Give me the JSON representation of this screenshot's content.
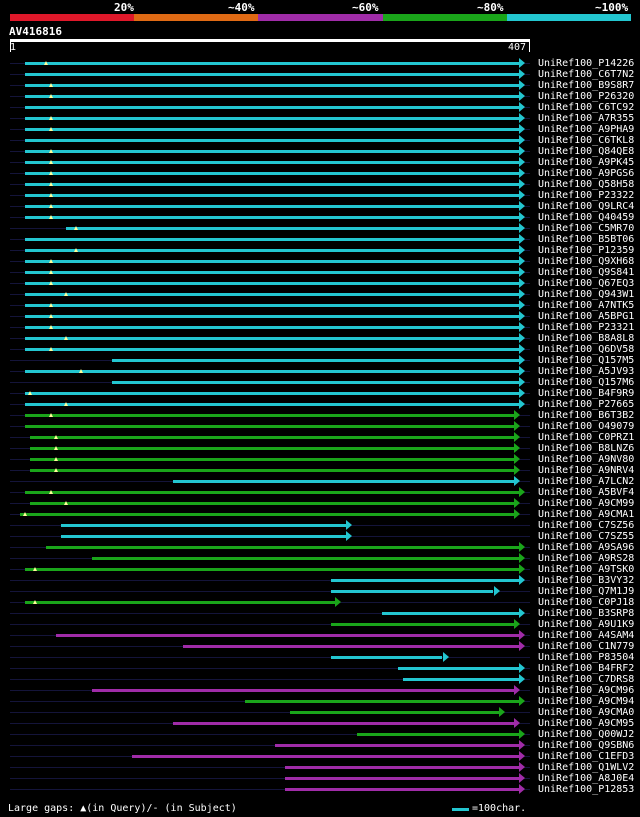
{
  "legend": {
    "labels": [
      "20%",
      "~40%",
      "~60%",
      "~80%",
      "~100%"
    ],
    "colors": [
      "#e0182a",
      "#e06a14",
      "#a02ca8",
      "#1aa51a",
      "#23c6d0"
    ]
  },
  "query": {
    "name": "AV416816",
    "start": "1",
    "end": "407"
  },
  "footer": {
    "gaps_text": "Large gaps: ▲(in Query)/- (in Subject)",
    "scale_text": "=100char."
  },
  "hits": [
    {
      "name": "UniRef100_P14226",
      "color": "cyan",
      "start": 0.02,
      "end": 1.0,
      "marker": 0.06
    },
    {
      "name": "UniRef100_C6T7N2",
      "color": "cyan",
      "start": 0.02,
      "end": 1.0,
      "marker": null
    },
    {
      "name": "UniRef100_B9S8R7",
      "color": "cyan",
      "start": 0.02,
      "end": 1.0,
      "marker": 0.07
    },
    {
      "name": "UniRef100_P26320",
      "color": "cyan",
      "start": 0.02,
      "end": 1.0,
      "marker": 0.07
    },
    {
      "name": "UniRef100_C6TC92",
      "color": "cyan",
      "start": 0.02,
      "end": 1.0,
      "marker": null
    },
    {
      "name": "UniRef100_A7R355",
      "color": "cyan",
      "start": 0.02,
      "end": 1.0,
      "marker": 0.07
    },
    {
      "name": "UniRef100_A9PHA9",
      "color": "cyan",
      "start": 0.02,
      "end": 1.0,
      "marker": 0.07
    },
    {
      "name": "UniRef100_C6TKL8",
      "color": "cyan",
      "start": 0.02,
      "end": 1.0,
      "marker": null
    },
    {
      "name": "UniRef100_Q84QE8",
      "color": "cyan",
      "start": 0.02,
      "end": 1.0,
      "marker": 0.07
    },
    {
      "name": "UniRef100_A9PK45",
      "color": "cyan",
      "start": 0.02,
      "end": 1.0,
      "marker": 0.07
    },
    {
      "name": "UniRef100_A9PGS6",
      "color": "cyan",
      "start": 0.02,
      "end": 1.0,
      "marker": 0.07
    },
    {
      "name": "UniRef100_Q58H58",
      "color": "cyan",
      "start": 0.02,
      "end": 1.0,
      "marker": 0.07
    },
    {
      "name": "UniRef100_P23322",
      "color": "cyan",
      "start": 0.02,
      "end": 1.0,
      "marker": 0.07
    },
    {
      "name": "UniRef100_Q9LRC4",
      "color": "cyan",
      "start": 0.02,
      "end": 1.0,
      "marker": 0.07
    },
    {
      "name": "UniRef100_Q40459",
      "color": "cyan",
      "start": 0.02,
      "end": 1.0,
      "marker": 0.07
    },
    {
      "name": "UniRef100_C5MR70",
      "color": "cyan",
      "start": 0.1,
      "end": 1.0,
      "marker": 0.12
    },
    {
      "name": "UniRef100_B5BT06",
      "color": "cyan",
      "start": 0.02,
      "end": 1.0,
      "marker": null
    },
    {
      "name": "UniRef100_P12359",
      "color": "cyan",
      "start": 0.02,
      "end": 1.0,
      "marker": 0.12
    },
    {
      "name": "UniRef100_Q9XH68",
      "color": "cyan",
      "start": 0.02,
      "end": 1.0,
      "marker": 0.07
    },
    {
      "name": "UniRef100_Q9S841",
      "color": "cyan",
      "start": 0.02,
      "end": 1.0,
      "marker": 0.07
    },
    {
      "name": "UniRef100_Q67EQ3",
      "color": "cyan",
      "start": 0.02,
      "end": 1.0,
      "marker": 0.07
    },
    {
      "name": "UniRef100_Q943W1",
      "color": "cyan",
      "start": 0.02,
      "end": 1.0,
      "marker": 0.1
    },
    {
      "name": "UniRef100_A7NTK5",
      "color": "cyan",
      "start": 0.02,
      "end": 1.0,
      "marker": 0.07
    },
    {
      "name": "UniRef100_A5BPG1",
      "color": "cyan",
      "start": 0.02,
      "end": 1.0,
      "marker": 0.07
    },
    {
      "name": "UniRef100_P23321",
      "color": "cyan",
      "start": 0.02,
      "end": 1.0,
      "marker": 0.07
    },
    {
      "name": "UniRef100_B8A8L8",
      "color": "cyan",
      "start": 0.02,
      "end": 1.0,
      "marker": 0.1
    },
    {
      "name": "UniRef100_Q6DV58",
      "color": "cyan",
      "start": 0.02,
      "end": 1.0,
      "marker": 0.07
    },
    {
      "name": "UniRef100_Q157M5",
      "color": "cyan",
      "start": 0.19,
      "end": 1.0,
      "marker": null
    },
    {
      "name": "UniRef100_A5JV93",
      "color": "cyan",
      "start": 0.02,
      "end": 1.0,
      "marker": 0.13
    },
    {
      "name": "UniRef100_Q157M6",
      "color": "cyan",
      "start": 0.19,
      "end": 1.0,
      "marker": null
    },
    {
      "name": "UniRef100_B4F9R9",
      "color": "cyan",
      "start": 0.02,
      "end": 1.0,
      "marker": 0.03
    },
    {
      "name": "UniRef100_P27665",
      "color": "cyan",
      "start": 0.02,
      "end": 1.0,
      "marker": 0.1
    },
    {
      "name": "UniRef100_B6T3B2",
      "color": "green",
      "start": 0.02,
      "end": 0.99,
      "marker": 0.07
    },
    {
      "name": "UniRef100_O49079",
      "color": "green",
      "start": 0.02,
      "end": 0.99,
      "marker": null
    },
    {
      "name": "UniRef100_C0PRZ1",
      "color": "green",
      "start": 0.03,
      "end": 0.99,
      "marker": 0.08
    },
    {
      "name": "UniRef100_B8LNZ6",
      "color": "green",
      "start": 0.03,
      "end": 0.99,
      "marker": 0.08
    },
    {
      "name": "UniRef100_A9NV80",
      "color": "green",
      "start": 0.03,
      "end": 0.99,
      "marker": 0.08
    },
    {
      "name": "UniRef100_A9NRV4",
      "color": "green",
      "start": 0.03,
      "end": 0.99,
      "marker": 0.08
    },
    {
      "name": "UniRef100_A7LCN2",
      "color": "cyan",
      "start": 0.31,
      "end": 0.99,
      "marker": null
    },
    {
      "name": "UniRef100_A5BVF4",
      "color": "green",
      "start": 0.02,
      "end": 1.0,
      "marker": 0.07
    },
    {
      "name": "UniRef100_A9CM99",
      "color": "green",
      "start": 0.03,
      "end": 0.99,
      "marker": 0.1
    },
    {
      "name": "UniRef100_A9CMA1",
      "color": "green",
      "start": 0.01,
      "end": 0.99,
      "marker": 0.02
    },
    {
      "name": "UniRef100_C7SZ56",
      "color": "cyan",
      "start": 0.09,
      "end": 0.66,
      "marker": null
    },
    {
      "name": "UniRef100_C7SZ55",
      "color": "cyan",
      "start": 0.09,
      "end": 0.66,
      "marker": null
    },
    {
      "name": "UniRef100_A9SA96",
      "color": "green",
      "start": 0.06,
      "end": 1.0,
      "marker": null
    },
    {
      "name": "UniRef100_A9RS28",
      "color": "green",
      "start": 0.15,
      "end": 1.0,
      "marker": null
    },
    {
      "name": "UniRef100_A9TSK0",
      "color": "green",
      "start": 0.02,
      "end": 1.0,
      "marker": 0.04
    },
    {
      "name": "UniRef100_B3VY32",
      "color": "cyan",
      "start": 0.62,
      "end": 1.0,
      "marker": null
    },
    {
      "name": "UniRef100_Q7M1J9",
      "color": "cyan",
      "start": 0.62,
      "end": 0.95,
      "marker": null
    },
    {
      "name": "UniRef100_C0PJ18",
      "color": "green",
      "start": 0.02,
      "end": 0.64,
      "marker": 0.04
    },
    {
      "name": "UniRef100_B3SRP8",
      "color": "cyan",
      "start": 0.72,
      "end": 1.0,
      "marker": null
    },
    {
      "name": "UniRef100_A9U1K9",
      "color": "green",
      "start": 0.62,
      "end": 0.99,
      "marker": null
    },
    {
      "name": "UniRef100_A4SAM4",
      "color": "purple",
      "start": 0.08,
      "end": 1.0,
      "marker": null
    },
    {
      "name": "UniRef100_C1N779",
      "color": "purple",
      "start": 0.33,
      "end": 1.0,
      "marker": null
    },
    {
      "name": "UniRef100_P83504",
      "color": "cyan",
      "start": 0.62,
      "end": 0.85,
      "marker": null
    },
    {
      "name": "UniRef100_B4FRF2",
      "color": "cyan",
      "start": 0.75,
      "end": 1.0,
      "marker": null
    },
    {
      "name": "UniRef100_C7DRS8",
      "color": "cyan",
      "start": 0.76,
      "end": 1.0,
      "marker": null
    },
    {
      "name": "UniRef100_A9CM96",
      "color": "purple",
      "start": 0.15,
      "end": 0.99,
      "marker": null
    },
    {
      "name": "UniRef100_A9CM94",
      "color": "green",
      "start": 0.45,
      "end": 1.0,
      "marker": null
    },
    {
      "name": "UniRef100_A9CMA0",
      "color": "green",
      "start": 0.54,
      "end": 0.96,
      "marker": null
    },
    {
      "name": "UniRef100_A9CM95",
      "color": "purple",
      "start": 0.31,
      "end": 0.99,
      "marker": null
    },
    {
      "name": "UniRef100_Q00WJ2",
      "color": "green",
      "start": 0.67,
      "end": 1.0,
      "marker": null
    },
    {
      "name": "UniRef100_Q9SBN6",
      "color": "purple",
      "start": 0.51,
      "end": 1.0,
      "marker": null
    },
    {
      "name": "UniRef100_C1EFD3",
      "color": "purple",
      "start": 0.23,
      "end": 1.0,
      "marker": null
    },
    {
      "name": "UniRef100_Q1WLV2",
      "color": "purple",
      "start": 0.53,
      "end": 1.0,
      "marker": null
    },
    {
      "name": "UniRef100_A8J0E4",
      "color": "purple",
      "start": 0.53,
      "end": 1.0,
      "marker": null
    },
    {
      "name": "UniRef100_P12853",
      "color": "purple",
      "start": 0.53,
      "end": 1.0,
      "marker": null
    }
  ]
}
